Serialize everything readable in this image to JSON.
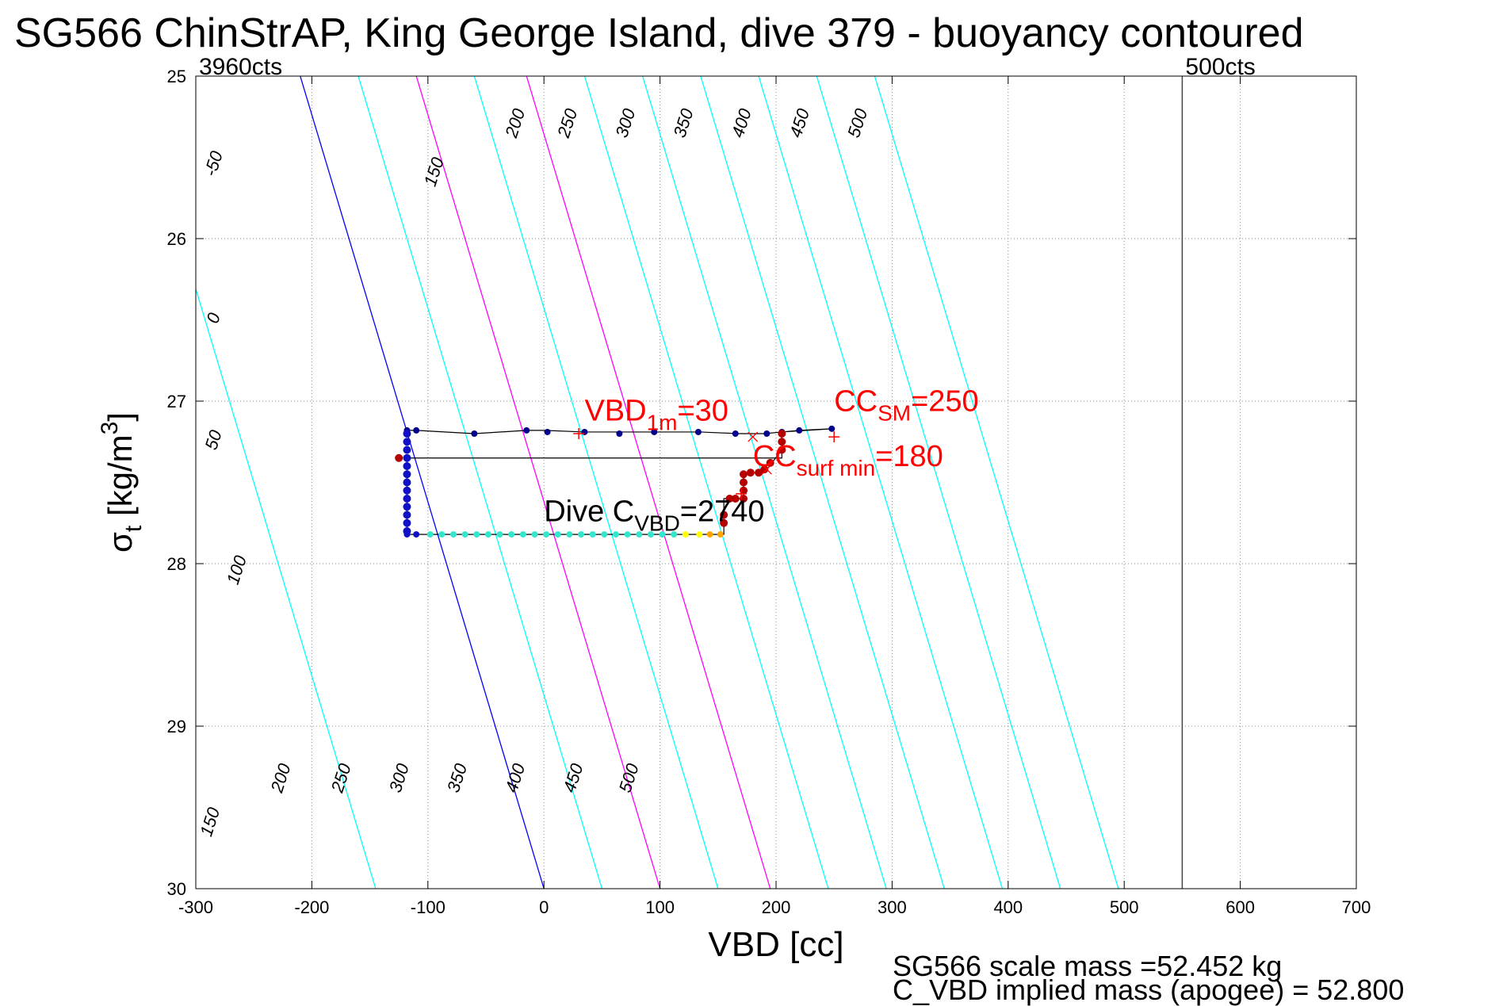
{
  "title": "SG566 ChinStrAP, King George Island, dive 379 - buoyancy contoured",
  "footer": {
    "line1": "SG566 scale mass =52.452 kg",
    "line2": "C_VBD implied mass (apogee) = 52.800"
  },
  "chart_data": {
    "type": "contour-scatter",
    "xlabel": "VBD [cc]",
    "ylabel_base": "σ",
    "ylabel_sub": "t",
    "ylabel_unit": " [kg/m",
    "ylabel_sup": "3",
    "ylabel_close": "]",
    "xlim": [
      -300,
      700
    ],
    "ylim": [
      25,
      30
    ],
    "y_reversed": true,
    "xticks": [
      "-300",
      "-200",
      "-100",
      "0",
      "100",
      "200",
      "300",
      "400",
      "500",
      "600",
      "700"
    ],
    "yticks": [
      "25",
      "26",
      "27",
      "28",
      "29",
      "30"
    ],
    "grid": true,
    "vbd_limits": [
      {
        "x": -300,
        "label": "3960cts"
      },
      {
        "x": 550,
        "label": "500cts"
      }
    ],
    "contours": [
      {
        "level": -50,
        "color": "#00ffff",
        "x_at_25": -355,
        "slope": 42
      },
      {
        "level": 0,
        "color": "#0000ff",
        "x_at_25": -210,
        "slope": 42
      },
      {
        "level": 50,
        "color": "#00ffff",
        "x_at_25": -160,
        "slope": 42
      },
      {
        "level": 100,
        "color": "#ff00ff",
        "x_at_25": -110,
        "slope": 42
      },
      {
        "level": 150,
        "color": "#00ffff",
        "x_at_25": -60,
        "slope": 42
      },
      {
        "level": 200,
        "color": "#ff00ff",
        "x_at_25": -15,
        "slope": 42
      },
      {
        "level": 250,
        "color": "#00ffff",
        "x_at_25": 35,
        "slope": 42
      },
      {
        "level": 300,
        "color": "#00ffff",
        "x_at_25": 85,
        "slope": 42
      },
      {
        "level": 350,
        "color": "#00ffff",
        "x_at_25": 135,
        "slope": 42
      },
      {
        "level": 400,
        "color": "#00ffff",
        "x_at_25": 185,
        "slope": 42
      },
      {
        "level": 450,
        "color": "#00ffff",
        "x_at_25": 235,
        "slope": 42
      },
      {
        "level": 500,
        "color": "#00ffff",
        "x_at_25": 285,
        "slope": 42
      }
    ],
    "contour_labels_top": [
      {
        "text": "-50",
        "x": -280,
        "y": 25.55
      },
      {
        "text": "150",
        "x": -90,
        "y": 25.6
      },
      {
        "text": "200",
        "x": -20,
        "y": 25.3
      },
      {
        "text": "250",
        "x": 25,
        "y": 25.3
      },
      {
        "text": "300",
        "x": 75,
        "y": 25.3
      },
      {
        "text": "350",
        "x": 125,
        "y": 25.3
      },
      {
        "text": "400",
        "x": 175,
        "y": 25.3
      },
      {
        "text": "450",
        "x": 225,
        "y": 25.3
      },
      {
        "text": "500",
        "x": 275,
        "y": 25.3
      },
      {
        "text": "0",
        "x": -280,
        "y": 26.5
      },
      {
        "text": "50",
        "x": -280,
        "y": 27.25
      },
      {
        "text": "100",
        "x": -260,
        "y": 28.05
      }
    ],
    "contour_labels_bottom": [
      {
        "text": "150",
        "x": -283,
        "y": 29.6
      },
      {
        "text": "200",
        "x": -222,
        "y": 29.33
      },
      {
        "text": "250",
        "x": -170,
        "y": 29.33
      },
      {
        "text": "300",
        "x": -120,
        "y": 29.33
      },
      {
        "text": "350",
        "x": -70,
        "y": 29.33
      },
      {
        "text": "400",
        "x": -20,
        "y": 29.33
      },
      {
        "text": "450",
        "x": 30,
        "y": 29.33
      },
      {
        "text": "500",
        "x": 78,
        "y": 29.33
      }
    ],
    "profile_line": [
      [
        -118,
        27.18
      ],
      [
        -110,
        27.18
      ],
      [
        -60,
        27.2
      ],
      [
        -15,
        27.18
      ],
      [
        0,
        27.18
      ],
      [
        35,
        27.19
      ],
      [
        95,
        27.19
      ],
      [
        135,
        27.19
      ],
      [
        168,
        27.2
      ],
      [
        190,
        27.2
      ],
      [
        205,
        27.19
      ],
      [
        220,
        27.18
      ],
      [
        248,
        27.17
      ],
      [
        205,
        27.19
      ],
      [
        205,
        27.35
      ],
      [
        -118,
        27.35
      ],
      [
        -118,
        27.82
      ],
      [
        155,
        27.82
      ],
      [
        155,
        27.6
      ],
      [
        172,
        27.6
      ],
      [
        172,
        27.44
      ],
      [
        190,
        27.44
      ],
      [
        205,
        27.3
      ]
    ],
    "points_top": [
      [
        -118,
        27.18
      ],
      [
        -110,
        27.18
      ],
      [
        -60,
        27.2
      ],
      [
        -15,
        27.18
      ],
      [
        3,
        27.19
      ],
      [
        35,
        27.19
      ],
      [
        65,
        27.2
      ],
      [
        95,
        27.19
      ],
      [
        133,
        27.19
      ],
      [
        165,
        27.2
      ],
      [
        192,
        27.2
      ],
      [
        205,
        27.19
      ],
      [
        220,
        27.18
      ],
      [
        248,
        27.17
      ]
    ],
    "points_left_column": [
      [
        -118,
        27.2
      ],
      [
        -118,
        27.25
      ],
      [
        -118,
        27.3
      ],
      [
        -118,
        27.35
      ],
      [
        -118,
        27.4
      ],
      [
        -118,
        27.45
      ],
      [
        -118,
        27.5
      ],
      [
        -118,
        27.55
      ],
      [
        -118,
        27.6
      ],
      [
        -118,
        27.65
      ],
      [
        -118,
        27.7
      ],
      [
        -118,
        27.75
      ],
      [
        -118,
        27.8
      ]
    ],
    "points_bottom": [
      [
        -118,
        27.82
      ],
      [
        -110,
        27.82
      ],
      [
        -98,
        27.82
      ],
      [
        -88,
        27.82
      ],
      [
        -78,
        27.82
      ],
      [
        -68,
        27.82
      ],
      [
        -58,
        27.82
      ],
      [
        -48,
        27.82
      ],
      [
        -38,
        27.82
      ],
      [
        -28,
        27.82
      ],
      [
        -18,
        27.82
      ],
      [
        -8,
        27.82
      ],
      [
        2,
        27.82
      ],
      [
        12,
        27.82
      ],
      [
        22,
        27.82
      ],
      [
        32,
        27.82
      ],
      [
        42,
        27.82
      ],
      [
        52,
        27.82
      ],
      [
        62,
        27.82
      ],
      [
        72,
        27.82
      ],
      [
        82,
        27.82
      ],
      [
        92,
        27.82
      ],
      [
        102,
        27.82
      ],
      [
        112,
        27.82
      ],
      [
        122,
        27.82
      ],
      [
        134,
        27.82
      ],
      [
        143,
        27.82
      ],
      [
        152,
        27.82
      ]
    ],
    "points_red": [
      [
        -125,
        27.35
      ],
      [
        155,
        27.75
      ],
      [
        155,
        27.7
      ],
      [
        160,
        27.6
      ],
      [
        165,
        27.6
      ],
      [
        172,
        27.6
      ],
      [
        172,
        27.55
      ],
      [
        172,
        27.5
      ],
      [
        172,
        27.45
      ],
      [
        178,
        27.44
      ],
      [
        185,
        27.44
      ],
      [
        190,
        27.42
      ],
      [
        195,
        27.38
      ],
      [
        205,
        27.3
      ],
      [
        205,
        27.25
      ],
      [
        205,
        27.2
      ]
    ],
    "markers_plus": [
      [
        30,
        27.2
      ],
      [
        250,
        27.22
      ],
      [
        170,
        27.57
      ]
    ],
    "markers_x": [
      [
        180,
        27.22
      ],
      [
        192,
        27.42
      ]
    ],
    "annotations": [
      {
        "key": "vbd1m",
        "base": "VBD",
        "sub": "1m",
        "value": "=30",
        "x": 35,
        "y": 27.12,
        "color": "#ff0000"
      },
      {
        "key": "ccsm",
        "base": "CC",
        "sub": "SM",
        "value": "=250",
        "x": 250,
        "y": 27.06,
        "color": "#ff0000"
      },
      {
        "key": "ccsurf",
        "base": "CC",
        "sub": "surf min",
        "value": "=180",
        "x": 180,
        "y": 27.4,
        "color": "#ff0000"
      },
      {
        "key": "dive",
        "base": "Dive C",
        "sub": "VBD",
        "value": "=2740",
        "x": 0,
        "y": 27.74,
        "color": "#000000"
      }
    ]
  }
}
